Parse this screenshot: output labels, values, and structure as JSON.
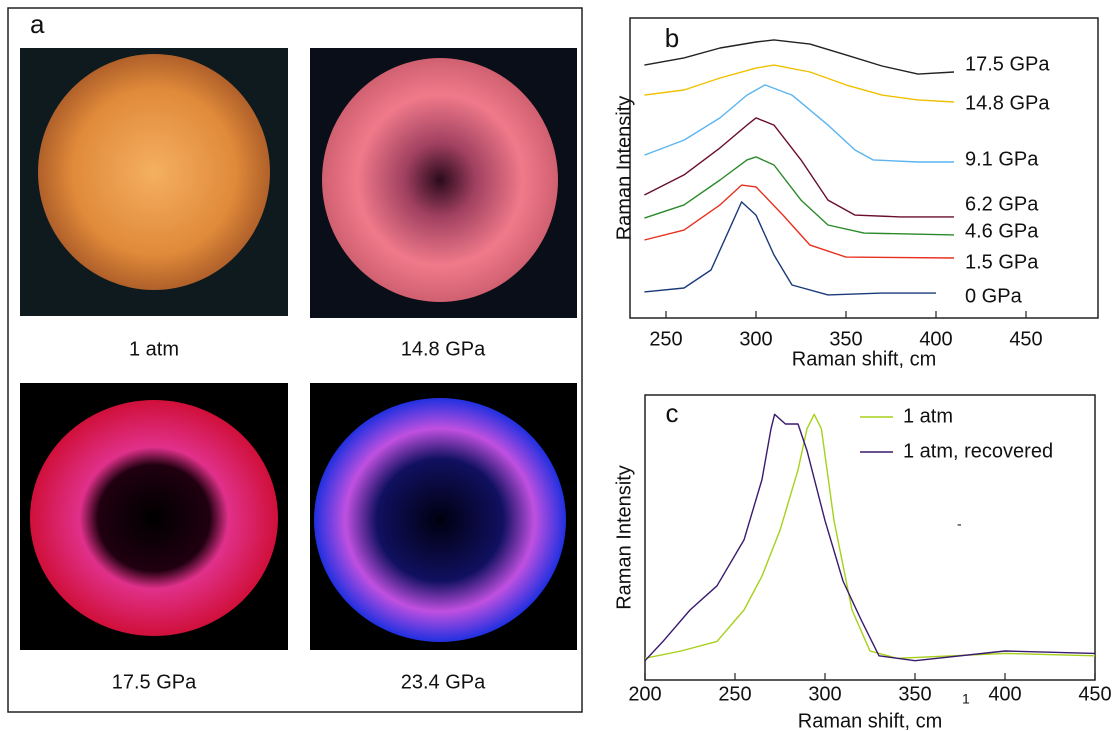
{
  "panel_a": {
    "letter": "a",
    "photos": [
      "1 atm",
      "14.8 GPa",
      "17.5 GPa",
      "23.4 GPa"
    ]
  },
  "chart_data": [
    {
      "type": "line",
      "title": "b",
      "x_label": "Raman shift, cm",
      "y_label": "Raman Intensity",
      "xlim": [
        230,
        490
      ],
      "xticks": [
        250,
        300,
        350,
        400,
        450
      ],
      "ylim": [
        0,
        10
      ],
      "series": [
        {
          "name": "17.5 GPa",
          "color": "#222222",
          "x": [
            238,
            260,
            280,
            300,
            310,
            330,
            350,
            370,
            390,
            410
          ],
          "values": [
            8.43,
            8.67,
            9.0,
            9.2,
            9.27,
            9.13,
            8.77,
            8.4,
            8.13,
            8.2
          ]
        },
        {
          "name": "14.8 GPa",
          "color": "#f0c000",
          "x": [
            238,
            260,
            280,
            300,
            310,
            330,
            350,
            370,
            390,
            410
          ],
          "values": [
            7.43,
            7.6,
            8.0,
            8.33,
            8.43,
            8.2,
            7.77,
            7.43,
            7.27,
            7.2
          ]
        },
        {
          "name": "9.1 GPa",
          "color": "#5ab4f0",
          "x": [
            238,
            260,
            280,
            295,
            305,
            320,
            340,
            355,
            365,
            390,
            410
          ],
          "values": [
            5.43,
            5.93,
            6.67,
            7.43,
            7.77,
            7.43,
            6.43,
            5.6,
            5.27,
            5.2,
            5.2
          ]
        },
        {
          "name": "6.2 GPa",
          "color": "#6a0d2a",
          "x": [
            238,
            260,
            280,
            295,
            300,
            310,
            325,
            340,
            355,
            380,
            410
          ],
          "values": [
            4.1,
            4.77,
            5.67,
            6.43,
            6.67,
            6.43,
            5.27,
            3.93,
            3.43,
            3.37,
            3.37
          ]
        },
        {
          "name": "4.6 GPa",
          "color": "#2a8a2a",
          "x": [
            238,
            260,
            280,
            295,
            300,
            310,
            325,
            340,
            360,
            410
          ],
          "values": [
            3.33,
            3.77,
            4.6,
            5.27,
            5.37,
            5.1,
            3.93,
            3.1,
            2.83,
            2.77
          ]
        },
        {
          "name": "1.5 GPa",
          "color": "#e83020",
          "x": [
            238,
            260,
            280,
            292,
            300,
            315,
            330,
            350,
            410
          ],
          "values": [
            2.6,
            2.93,
            3.77,
            4.43,
            4.37,
            3.43,
            2.43,
            2.03,
            2.0
          ]
        },
        {
          "name": "0 GPa",
          "color": "#1a3a7a",
          "x": [
            238,
            260,
            275,
            285,
            292,
            300,
            310,
            320,
            340,
            370,
            400
          ],
          "values": [
            0.87,
            1.0,
            1.6,
            2.93,
            3.87,
            3.43,
            2.1,
            1.1,
            0.77,
            0.83,
            0.83
          ]
        }
      ]
    },
    {
      "type": "line",
      "title": "c",
      "x_label": "Raman shift, cm",
      "y_label": "Raman Intensity",
      "xlim": [
        200,
        450
      ],
      "xticks": [
        200,
        250,
        300,
        350,
        400,
        450
      ],
      "ylim": [
        -0.1,
        1.08
      ],
      "legend": true,
      "legend_position": "upper right",
      "annotations": [
        "-",
        "1"
      ],
      "series": [
        {
          "name": "1 atm",
          "color": "#a6d11a",
          "x": [
            200,
            220,
            240,
            255,
            265,
            275,
            285,
            290,
            294,
            298,
            305,
            315,
            325,
            340,
            400,
            450
          ],
          "values": [
            -0.01,
            0.02,
            0.06,
            0.19,
            0.33,
            0.52,
            0.77,
            0.94,
            1.0,
            0.94,
            0.56,
            0.19,
            0.02,
            -0.01,
            0.01,
            0
          ]
        },
        {
          "name": "1 atm, recovered",
          "color": "#3a1a6e",
          "x": [
            200,
            210,
            225,
            240,
            255,
            265,
            270,
            272,
            278,
            285,
            290,
            300,
            310,
            320,
            330,
            350,
            400,
            450
          ],
          "values": [
            -0.02,
            0.06,
            0.19,
            0.29,
            0.48,
            0.73,
            0.94,
            1.0,
            0.96,
            0.96,
            0.85,
            0.56,
            0.31,
            0.15,
            0,
            -0.02,
            0.02,
            0.01
          ]
        }
      ]
    }
  ]
}
